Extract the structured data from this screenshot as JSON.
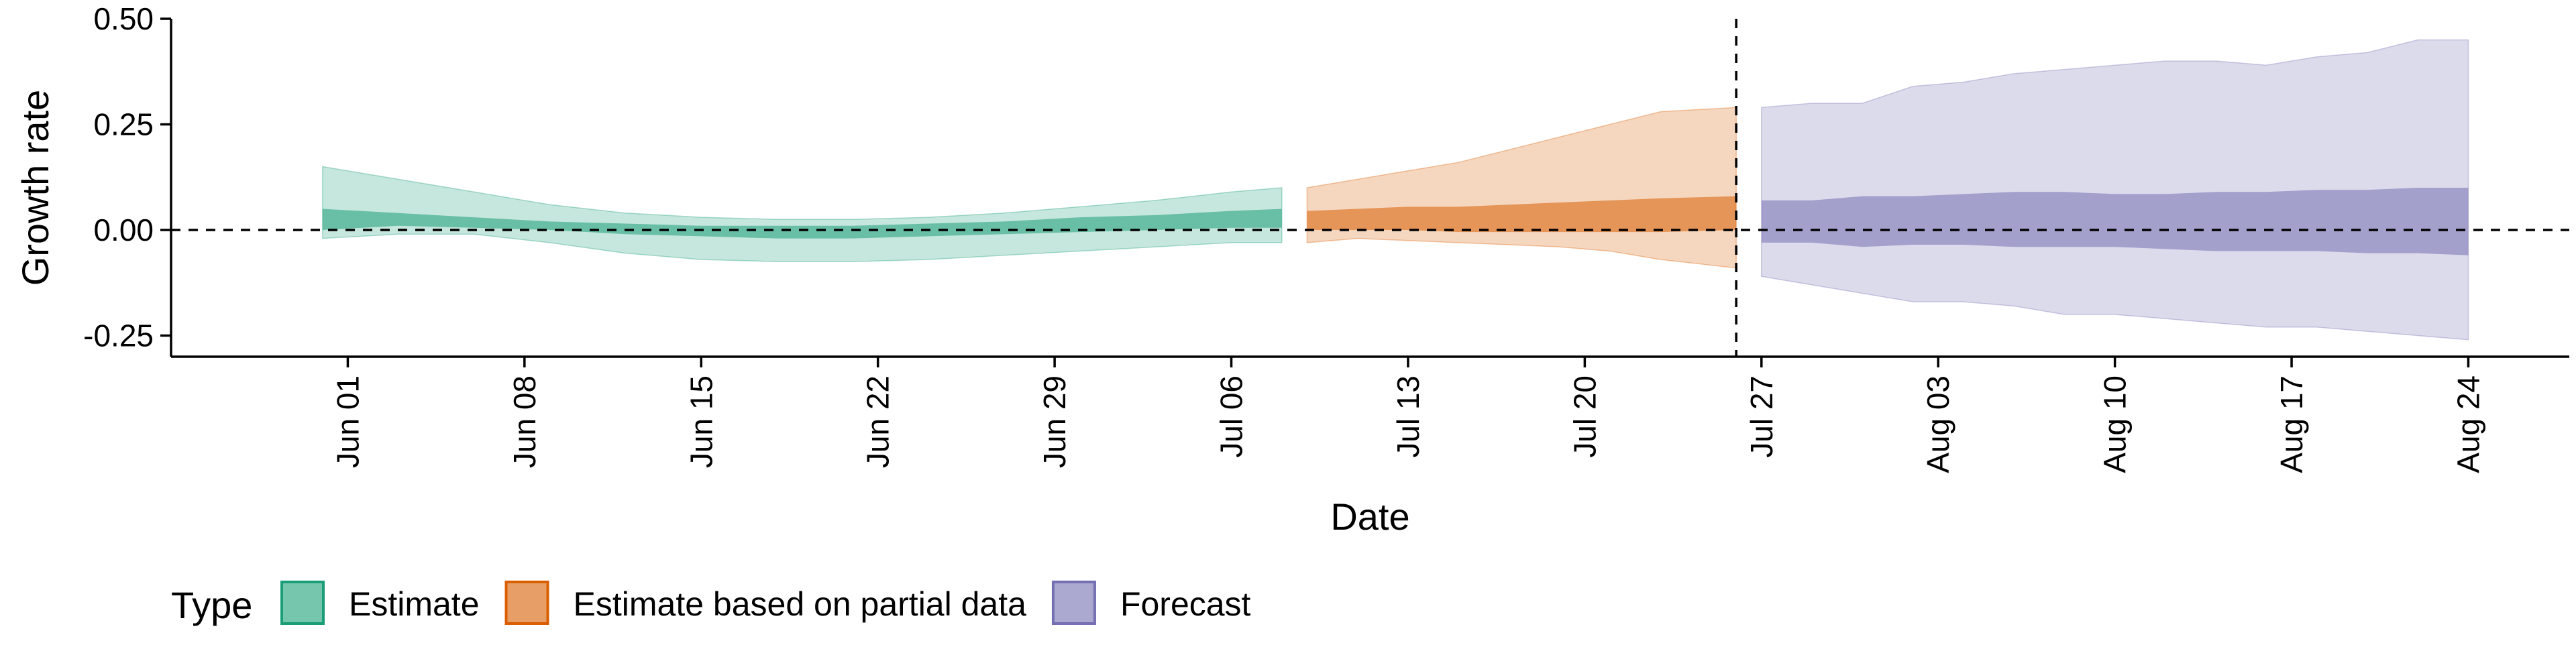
{
  "chart_data": {
    "type": "area",
    "title": "",
    "xlabel": "Date",
    "ylabel": "Growth rate",
    "xlim": [
      "2021-05-25",
      "2021-08-28"
    ],
    "ylim": [
      -0.3,
      0.5
    ],
    "y_ticks": [
      "-0.25",
      "0.00",
      "0.25",
      "0.50"
    ],
    "y_tick_values": [
      -0.25,
      0,
      0.25,
      0.5
    ],
    "x_tick_dates": [
      "2021-06-01",
      "2021-06-08",
      "2021-06-15",
      "2021-06-22",
      "2021-06-29",
      "2021-07-06",
      "2021-07-13",
      "2021-07-20",
      "2021-07-27",
      "2021-08-03",
      "2021-08-10",
      "2021-08-17",
      "2021-08-24"
    ],
    "x_ticks": [
      "Jun 01",
      "Jun 08",
      "Jun 15",
      "Jun 22",
      "Jun 29",
      "Jul 06",
      "Jul 13",
      "Jul 20",
      "Jul 27",
      "Aug 03",
      "Aug 10",
      "Aug 17",
      "Aug 24"
    ],
    "reference_lines": {
      "horizontal_y": 0,
      "vertical_date": "2021-07-26",
      "style": "dashed"
    },
    "grid": false,
    "legend": {
      "title": "Type",
      "placement": "bottom-left"
    },
    "series": [
      {
        "name": "Estimate",
        "color": "#1b9e77",
        "x": [
          "2021-05-31",
          "2021-06-03",
          "2021-06-06",
          "2021-06-09",
          "2021-06-12",
          "2021-06-15",
          "2021-06-18",
          "2021-06-21",
          "2021-06-24",
          "2021-06-27",
          "2021-06-30",
          "2021-07-03",
          "2021-07-06",
          "2021-07-08"
        ],
        "outer_upper": [
          0.15,
          0.12,
          0.09,
          0.06,
          0.04,
          0.03,
          0.025,
          0.025,
          0.03,
          0.04,
          0.055,
          0.07,
          0.09,
          0.1
        ],
        "outer_lower": [
          -0.02,
          -0.01,
          -0.01,
          -0.03,
          -0.055,
          -0.07,
          -0.075,
          -0.075,
          -0.07,
          -0.06,
          -0.05,
          -0.04,
          -0.03,
          -0.03
        ],
        "inner_upper": [
          0.05,
          0.04,
          0.03,
          0.02,
          0.015,
          0.01,
          0.01,
          0.01,
          0.015,
          0.02,
          0.03,
          0.035,
          0.045,
          0.05
        ],
        "inner_lower": [
          0.0,
          0.01,
          0.005,
          0.0,
          -0.01,
          -0.015,
          -0.02,
          -0.02,
          -0.015,
          -0.01,
          -0.005,
          0.0,
          0.005,
          0.005
        ]
      },
      {
        "name": "Estimate based on partial data",
        "color": "#d95f02",
        "x": [
          "2021-07-09",
          "2021-07-11",
          "2021-07-13",
          "2021-07-15",
          "2021-07-17",
          "2021-07-19",
          "2021-07-21",
          "2021-07-23",
          "2021-07-26"
        ],
        "outer_upper": [
          0.1,
          0.12,
          0.14,
          0.16,
          0.19,
          0.22,
          0.25,
          0.28,
          0.29
        ],
        "outer_lower": [
          -0.03,
          -0.02,
          -0.025,
          -0.03,
          -0.035,
          -0.04,
          -0.05,
          -0.07,
          -0.09
        ],
        "inner_upper": [
          0.045,
          0.05,
          0.055,
          0.055,
          0.06,
          0.065,
          0.07,
          0.075,
          0.08
        ],
        "inner_lower": [
          0.0,
          0.0,
          0.0,
          -0.005,
          -0.005,
          -0.005,
          -0.005,
          -0.005,
          0.0
        ]
      },
      {
        "name": "Forecast",
        "color": "#7570b3",
        "x": [
          "2021-07-27",
          "2021-07-29",
          "2021-07-31",
          "2021-08-02",
          "2021-08-04",
          "2021-08-06",
          "2021-08-08",
          "2021-08-10",
          "2021-08-12",
          "2021-08-14",
          "2021-08-16",
          "2021-08-18",
          "2021-08-20",
          "2021-08-22",
          "2021-08-24"
        ],
        "outer_upper": [
          0.29,
          0.3,
          0.3,
          0.34,
          0.35,
          0.37,
          0.38,
          0.39,
          0.4,
          0.4,
          0.39,
          0.41,
          0.42,
          0.45,
          0.45
        ],
        "outer_lower": [
          -0.11,
          -0.13,
          -0.15,
          -0.17,
          -0.17,
          -0.18,
          -0.2,
          -0.2,
          -0.21,
          -0.22,
          -0.23,
          -0.23,
          -0.24,
          -0.25,
          -0.26
        ],
        "inner_upper": [
          0.07,
          0.07,
          0.08,
          0.08,
          0.085,
          0.09,
          0.09,
          0.085,
          0.085,
          0.09,
          0.09,
          0.095,
          0.095,
          0.1,
          0.1
        ],
        "inner_lower": [
          -0.03,
          -0.03,
          -0.04,
          -0.035,
          -0.035,
          -0.04,
          -0.04,
          -0.04,
          -0.045,
          -0.05,
          -0.05,
          -0.05,
          -0.055,
          -0.055,
          -0.06
        ]
      }
    ]
  }
}
